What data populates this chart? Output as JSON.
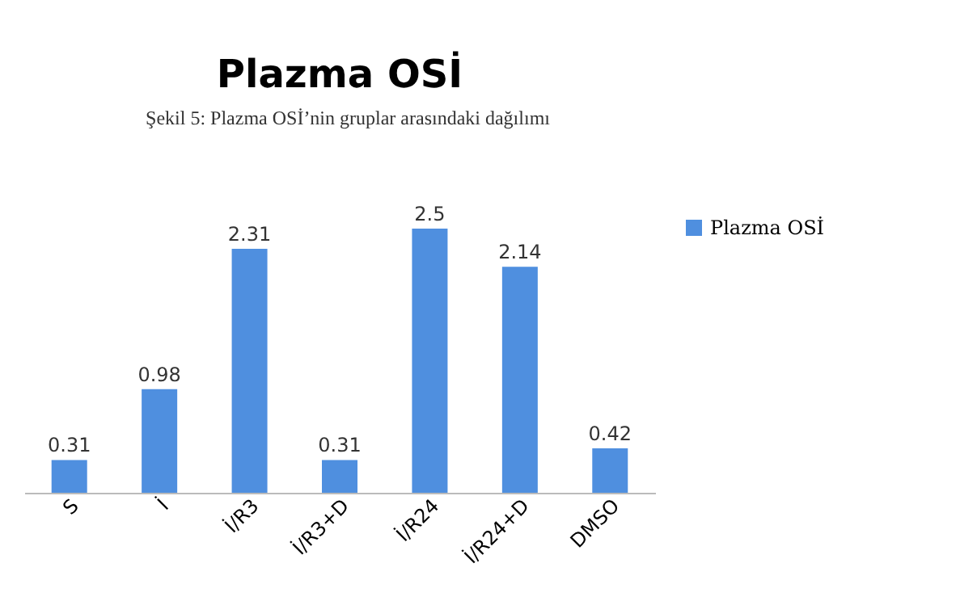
{
  "chart_data": {
    "type": "bar",
    "title": "Plazma OSİ",
    "annotations": [
      "Şekil 5: Plazma OSİ’nin gruplar arasındaki dağılımı"
    ],
    "categories": [
      "S",
      "İ",
      "İ/R3",
      "İ/R3+D",
      "İ/R24",
      "İ/R24+D",
      "DMSO"
    ],
    "series": [
      {
        "name": "Plazma OSİ",
        "color": "#4f8fdf",
        "values": [
          0.31,
          0.98,
          2.31,
          0.31,
          2.5,
          2.14,
          0.42
        ]
      }
    ],
    "data_labels": true,
    "legend": "right",
    "grid": false
  }
}
